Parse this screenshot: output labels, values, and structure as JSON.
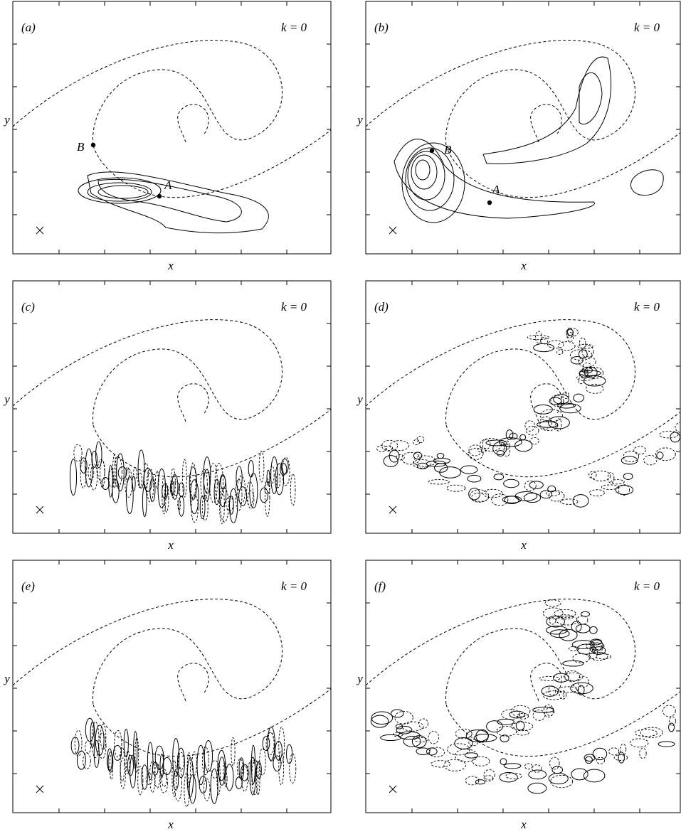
{
  "panels": [
    {
      "label": "(a)",
      "k": "k = 0",
      "xlabel": "x",
      "ylabel": "y",
      "points": [
        {
          "label": "A"
        },
        {
          "label": "B"
        }
      ]
    },
    {
      "label": "(b)",
      "k": "k = 0",
      "xlabel": "x",
      "ylabel": "y",
      "points": [
        {
          "label": "A"
        },
        {
          "label": "B"
        }
      ]
    },
    {
      "label": "(c)",
      "k": "k = 0",
      "xlabel": "x",
      "ylabel": "y"
    },
    {
      "label": "(d)",
      "k": "k = 0",
      "xlabel": "x",
      "ylabel": "y"
    },
    {
      "label": "(e)",
      "k": "k = 0",
      "xlabel": "x",
      "ylabel": "y"
    },
    {
      "label": "(f)",
      "k": "k = 0",
      "xlabel": "x",
      "ylabel": "y"
    }
  ]
}
